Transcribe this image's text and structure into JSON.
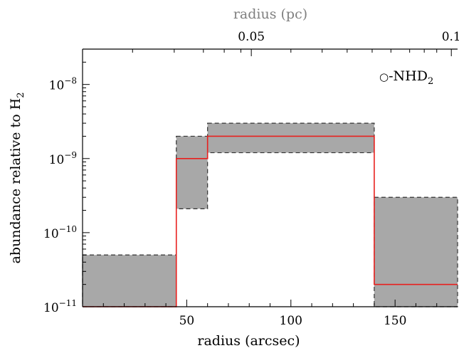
{
  "chart_data": {
    "type": "area",
    "annotation": {
      "circle_glyph": "○",
      "label_prefix": "-NHD",
      "label_subscript": "2"
    },
    "x_axis": {
      "label": "radius (arcsec)",
      "range": [
        0,
        180
      ],
      "ticks": [
        50,
        100,
        150
      ],
      "tick_labels": [
        "50",
        "100",
        "150"
      ]
    },
    "top_axis": {
      "label": "radius (pc)",
      "ticks_arcsec": [
        81,
        177
      ],
      "tick_labels": [
        "0.05",
        "0.1"
      ],
      "label_color": "#7f7f7f"
    },
    "y_axis": {
      "label_main": "abundance relative to H",
      "label_subscript": "2",
      "scale": "log",
      "range": [
        1e-11,
        3e-08
      ],
      "ticks": [
        1e-11,
        1e-10,
        1e-09,
        1e-08
      ],
      "tick_labels": [
        {
          "base": "10",
          "exp": "−11"
        },
        {
          "base": "10",
          "exp": "−10"
        },
        {
          "base": "10",
          "exp": "−9"
        },
        {
          "base": "10",
          "exp": "−8"
        }
      ]
    },
    "uncertainty_bands": [
      {
        "x_start": 0,
        "x_end": 45,
        "lower": 1e-11,
        "upper": 5e-11
      },
      {
        "x_start": 45,
        "x_end": 60,
        "lower": 2.1e-10,
        "upper": 2e-09
      },
      {
        "x_start": 60,
        "x_end": 140,
        "lower": 1.2e-09,
        "upper": 3e-09
      },
      {
        "x_start": 140,
        "x_end": 180,
        "lower": 1e-11,
        "upper": 3e-10
      }
    ],
    "best_fit_profile": {
      "segments": [
        {
          "x_start": 0,
          "x_end": 45,
          "value": 1e-11
        },
        {
          "x_start": 45,
          "x_end": 60,
          "value": 1e-09
        },
        {
          "x_start": 60,
          "x_end": 140,
          "value": 2e-09
        },
        {
          "x_start": 140,
          "x_end": 180,
          "value": 2e-11
        }
      ]
    },
    "colors": {
      "band_fill": "#a8a8a8",
      "band_edge": "#333333",
      "profile_line": "#e8201e",
      "axis": "#000000"
    },
    "grid": false
  }
}
